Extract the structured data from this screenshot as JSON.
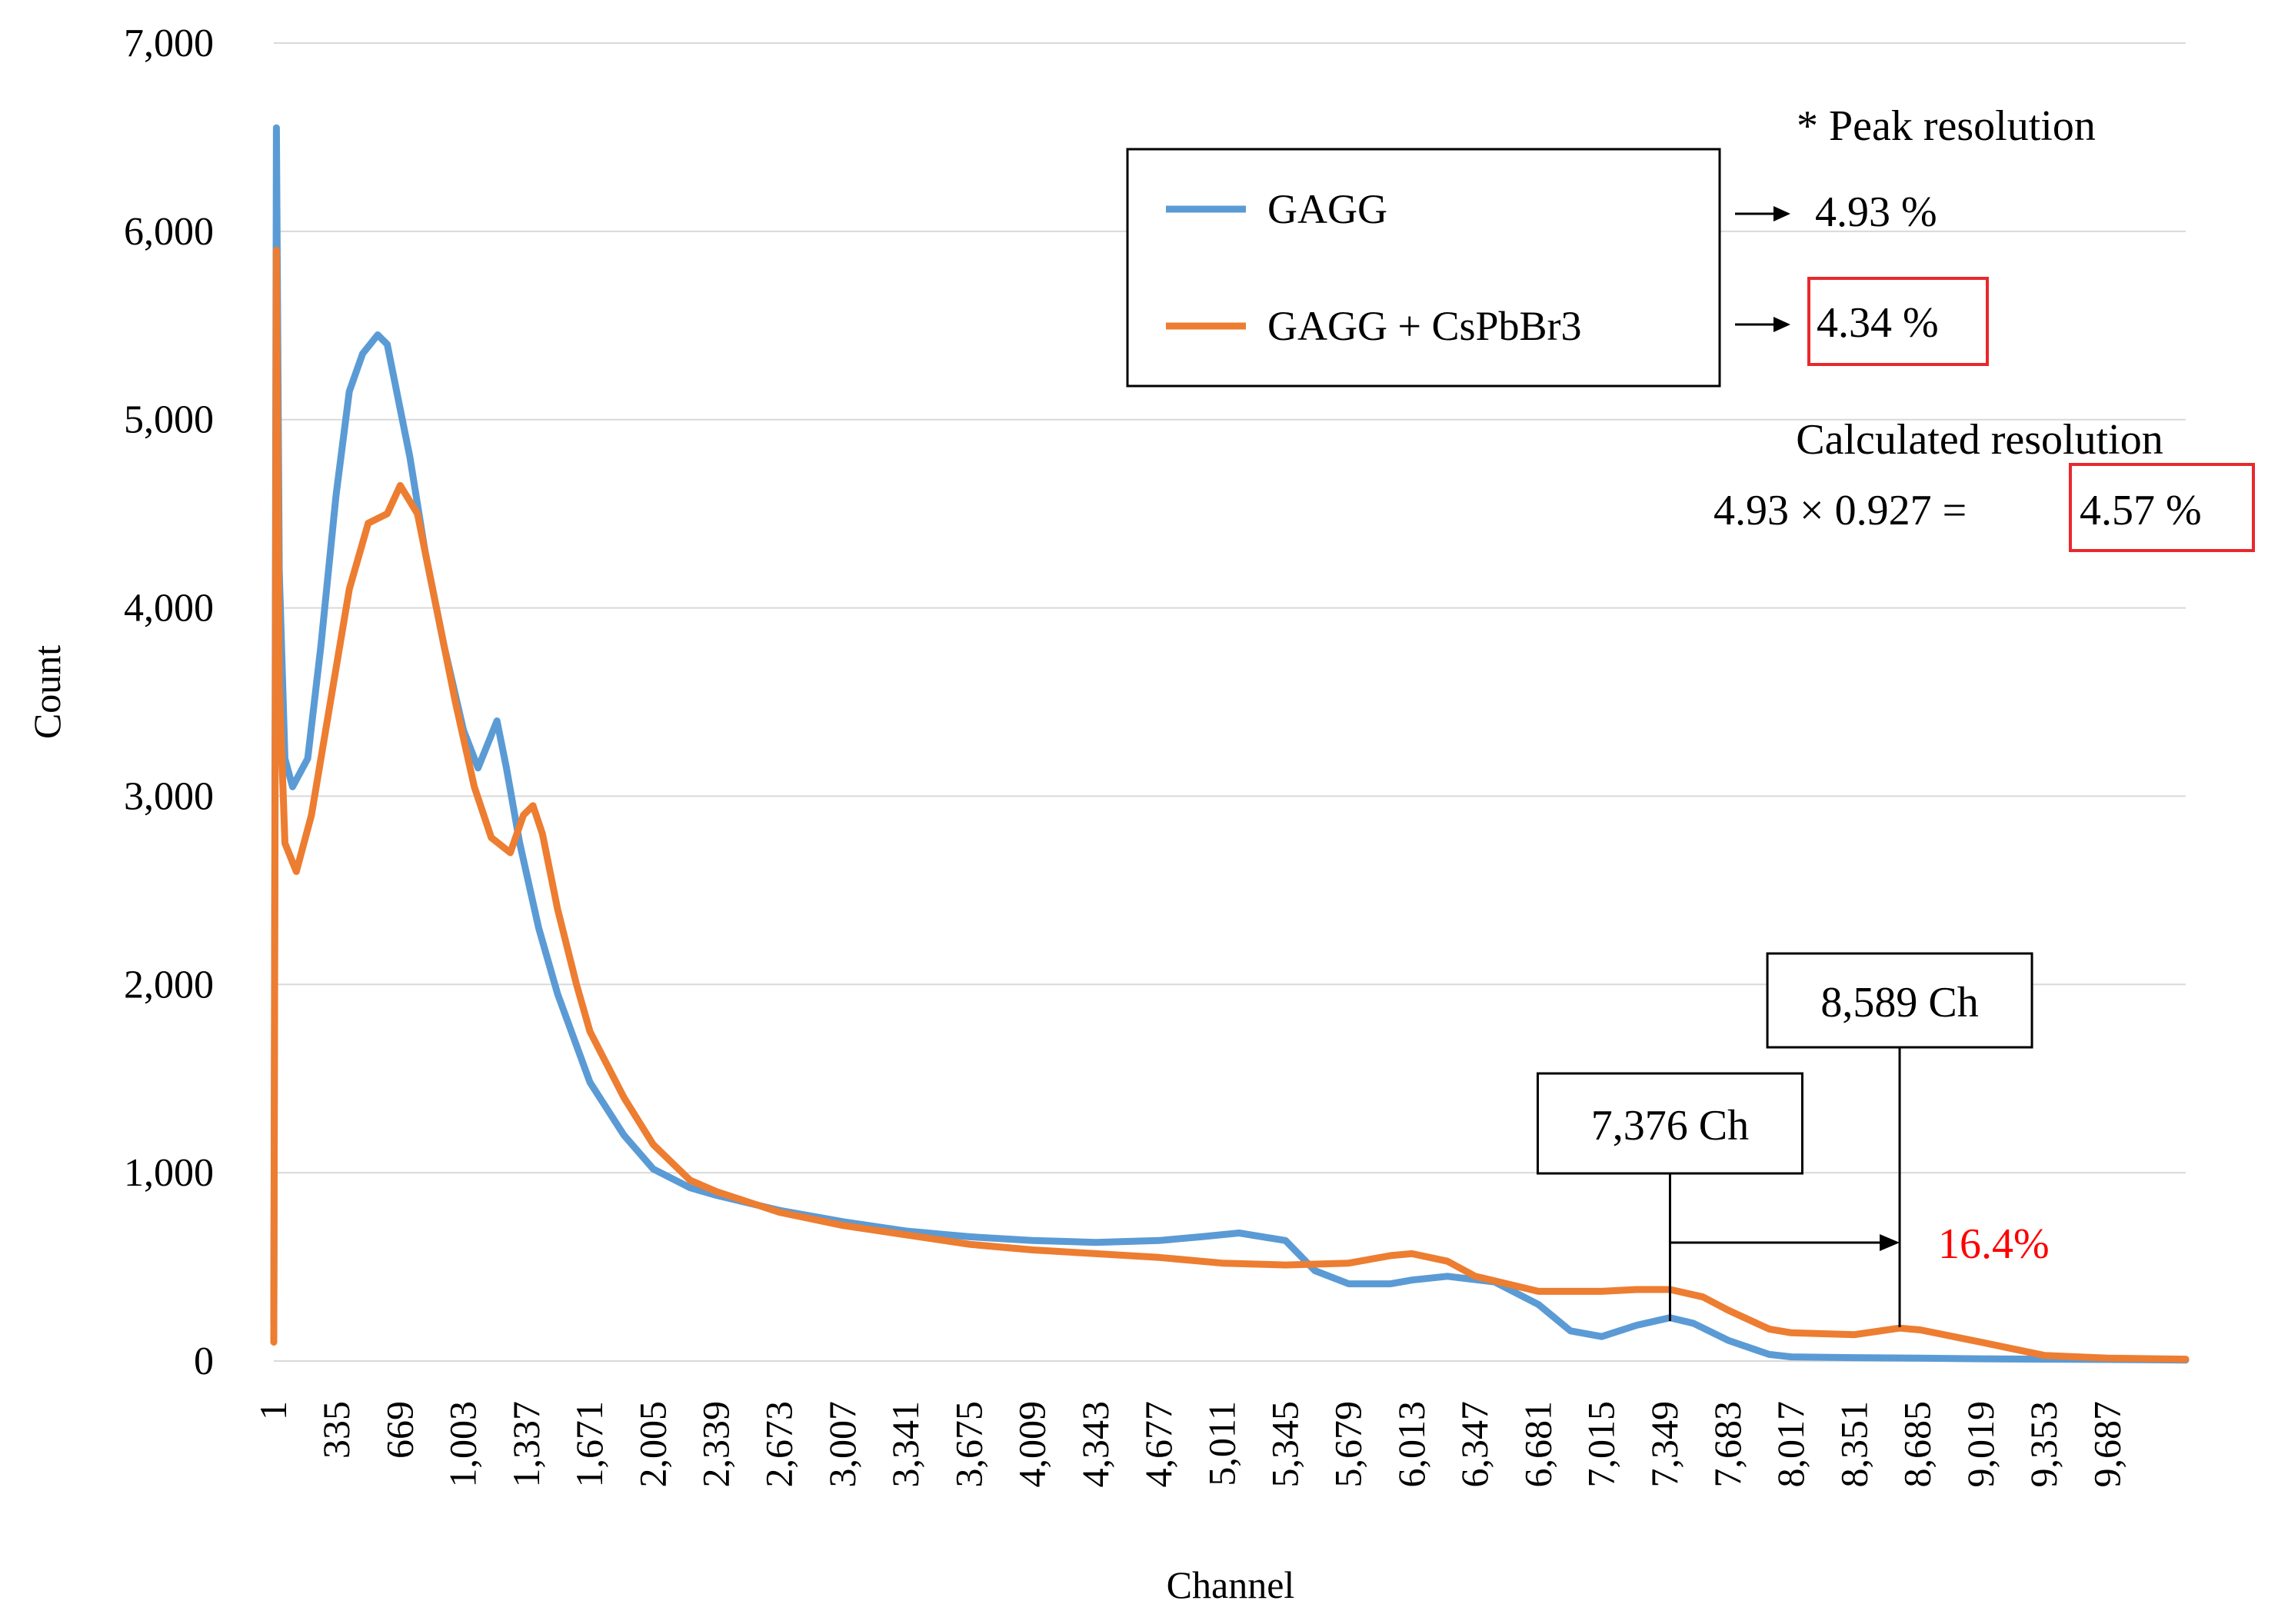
{
  "chart_data": {
    "type": "line",
    "title": "",
    "xlabel": "Channel",
    "ylabel": "Count",
    "xlim": [
      1,
      10100
    ],
    "ylim": [
      0,
      7000
    ],
    "yticks": [
      0,
      1000,
      2000,
      3000,
      4000,
      5000,
      6000,
      7000
    ],
    "ytick_labels": [
      "0",
      "1,000",
      "2,000",
      "3,000",
      "4,000",
      "5,000",
      "6,000",
      "7,000"
    ],
    "xticks": [
      1,
      335,
      669,
      1003,
      1337,
      1671,
      2005,
      2339,
      2673,
      3007,
      3341,
      3675,
      4009,
      4343,
      4677,
      5011,
      5345,
      5679,
      6013,
      6347,
      6681,
      7015,
      7349,
      7683,
      8017,
      8351,
      8685,
      9019,
      9353,
      9687
    ],
    "xtick_labels": [
      "1",
      "335",
      "669",
      "1,003",
      "1,337",
      "1,671",
      "2,005",
      "2,339",
      "2,673",
      "3,007",
      "3,341",
      "3,675",
      "4,009",
      "4,343",
      "4,677",
      "5,011",
      "5,345",
      "5,679",
      "6,013",
      "6,347",
      "6,681",
      "7,015",
      "7,349",
      "7,683",
      "8,017",
      "8,351",
      "8,685",
      "9,019",
      "9,353",
      "9,687"
    ],
    "grid": true,
    "legend_position": "top-right",
    "series": [
      {
        "name": "GAGG",
        "color": "#5b9bd5",
        "points": [
          [
            1,
            200
          ],
          [
            15,
            6550
          ],
          [
            30,
            4200
          ],
          [
            60,
            3200
          ],
          [
            100,
            3050
          ],
          [
            180,
            3200
          ],
          [
            250,
            3800
          ],
          [
            330,
            4600
          ],
          [
            400,
            5150
          ],
          [
            470,
            5350
          ],
          [
            550,
            5450
          ],
          [
            600,
            5400
          ],
          [
            660,
            5100
          ],
          [
            720,
            4800
          ],
          [
            800,
            4300
          ],
          [
            900,
            3800
          ],
          [
            1003,
            3350
          ],
          [
            1080,
            3150
          ],
          [
            1140,
            3300
          ],
          [
            1180,
            3400
          ],
          [
            1230,
            3150
          ],
          [
            1300,
            2750
          ],
          [
            1400,
            2300
          ],
          [
            1500,
            1950
          ],
          [
            1671,
            1480
          ],
          [
            1850,
            1200
          ],
          [
            2005,
            1020
          ],
          [
            2200,
            920
          ],
          [
            2339,
            880
          ],
          [
            2673,
            800
          ],
          [
            3007,
            740
          ],
          [
            3341,
            690
          ],
          [
            3675,
            660
          ],
          [
            4009,
            640
          ],
          [
            4343,
            630
          ],
          [
            4677,
            640
          ],
          [
            4900,
            660
          ],
          [
            5100,
            680
          ],
          [
            5345,
            640
          ],
          [
            5500,
            480
          ],
          [
            5679,
            410
          ],
          [
            5900,
            410
          ],
          [
            6013,
            430
          ],
          [
            6200,
            450
          ],
          [
            6450,
            420
          ],
          [
            6681,
            300
          ],
          [
            6850,
            160
          ],
          [
            7015,
            130
          ],
          [
            7200,
            190
          ],
          [
            7376,
            230
          ],
          [
            7500,
            200
          ],
          [
            7683,
            110
          ],
          [
            7900,
            35
          ],
          [
            8017,
            22
          ],
          [
            8351,
            18
          ],
          [
            8685,
            15
          ],
          [
            9019,
            12
          ],
          [
            9353,
            10
          ],
          [
            9687,
            8
          ],
          [
            10100,
            5
          ]
        ]
      },
      {
        "name": "GAGG + CsPbBr3",
        "color": "#ed7d31",
        "points": [
          [
            1,
            100
          ],
          [
            15,
            5900
          ],
          [
            30,
            3600
          ],
          [
            60,
            2750
          ],
          [
            120,
            2600
          ],
          [
            200,
            2900
          ],
          [
            300,
            3500
          ],
          [
            400,
            4100
          ],
          [
            500,
            4450
          ],
          [
            600,
            4500
          ],
          [
            669,
            4650
          ],
          [
            760,
            4500
          ],
          [
            860,
            4000
          ],
          [
            960,
            3500
          ],
          [
            1060,
            3050
          ],
          [
            1150,
            2780
          ],
          [
            1250,
            2700
          ],
          [
            1320,
            2900
          ],
          [
            1370,
            2950
          ],
          [
            1420,
            2800
          ],
          [
            1500,
            2400
          ],
          [
            1600,
            2000
          ],
          [
            1671,
            1750
          ],
          [
            1850,
            1400
          ],
          [
            2005,
            1150
          ],
          [
            2200,
            960
          ],
          [
            2339,
            900
          ],
          [
            2673,
            790
          ],
          [
            3007,
            720
          ],
          [
            3341,
            670
          ],
          [
            3675,
            620
          ],
          [
            4009,
            590
          ],
          [
            4343,
            570
          ],
          [
            4677,
            550
          ],
          [
            5011,
            520
          ],
          [
            5345,
            510
          ],
          [
            5679,
            520
          ],
          [
            5900,
            560
          ],
          [
            6013,
            570
          ],
          [
            6200,
            530
          ],
          [
            6347,
            450
          ],
          [
            6681,
            370
          ],
          [
            7015,
            370
          ],
          [
            7200,
            380
          ],
          [
            7376,
            380
          ],
          [
            7550,
            340
          ],
          [
            7683,
            270
          ],
          [
            7900,
            170
          ],
          [
            8017,
            150
          ],
          [
            8351,
            140
          ],
          [
            8589,
            175
          ],
          [
            8700,
            165
          ],
          [
            9019,
            100
          ],
          [
            9353,
            30
          ],
          [
            9687,
            15
          ],
          [
            10100,
            10
          ]
        ]
      }
    ],
    "annotations": {
      "peak_resolution_title": "* Peak resolution",
      "gagg_resolution": "4.93 %",
      "cspbbr3_resolution": "4.34 %",
      "calc_title": "Calculated resolution",
      "calc_formula": "4.93 × 0.927 =",
      "calc_result": "4.57 %",
      "peak1_label": "7,376 Ch",
      "peak1_channel": 7376,
      "peak2_label": "8,589 Ch",
      "peak2_channel": 8589,
      "shift_label": "16.4%",
      "shift_color": "#ff0000"
    }
  }
}
